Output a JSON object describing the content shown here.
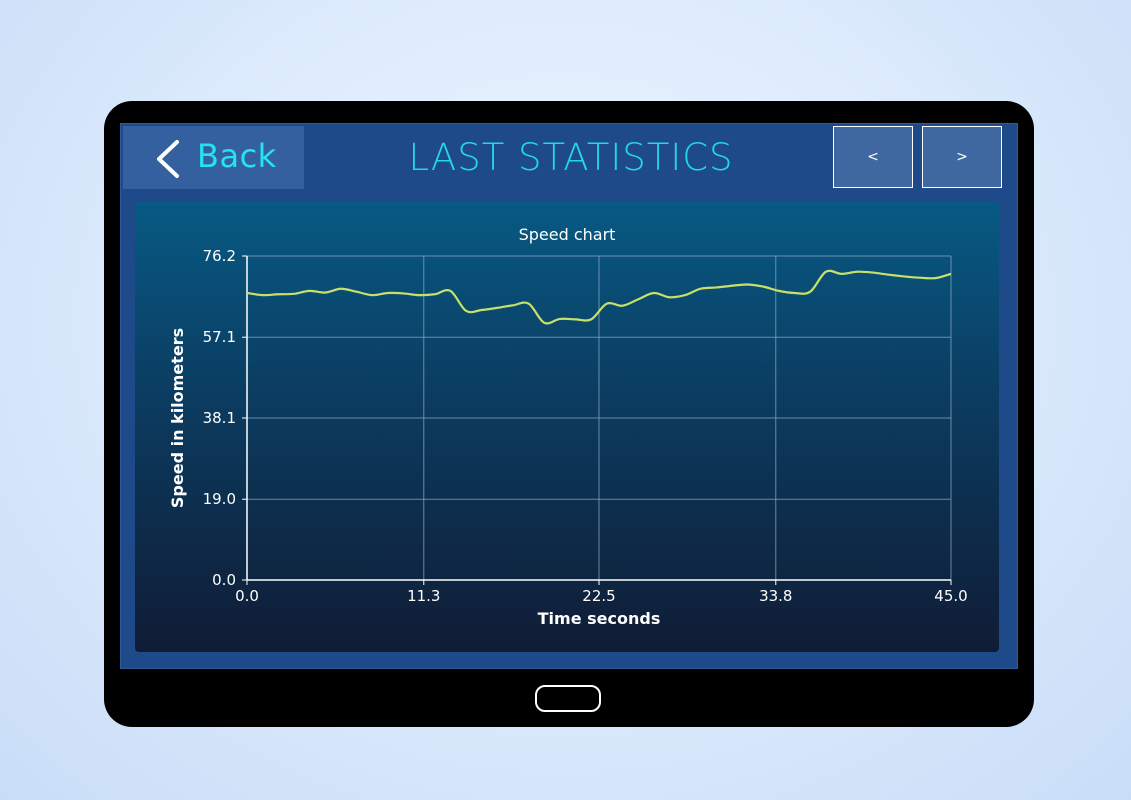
{
  "header": {
    "back_label": "Back",
    "title": "LAST STATISTICS",
    "prev_label": "<",
    "next_label": ">"
  },
  "colors": {
    "accent": "#22d6ee",
    "line": "#c8e06a",
    "grid": "#8aa6bf"
  },
  "icons": {
    "back": "chevron-left-icon"
  },
  "chart_data": {
    "type": "line",
    "title": "Speed chart",
    "xlabel": "Time seconds",
    "ylabel": "Speed in kilometers",
    "xlim": [
      0,
      45
    ],
    "ylim": [
      0,
      76.2
    ],
    "x_ticks": [
      "0.0",
      "11.3",
      "22.5",
      "33.8",
      "45.0"
    ],
    "y_ticks": [
      "0.0",
      "19.0",
      "38.1",
      "57.1",
      "76.2"
    ],
    "grid": true,
    "series": [
      {
        "x": [
          0,
          1,
          2,
          3,
          4,
          5,
          6,
          7,
          8,
          9,
          10,
          11,
          12,
          13,
          14,
          15,
          16,
          17,
          18,
          19,
          20,
          21,
          22,
          23,
          24,
          25,
          26,
          27,
          28,
          29,
          30,
          31,
          32,
          33,
          34,
          35,
          36,
          37,
          38,
          39,
          40,
          41,
          42,
          43,
          44,
          45
        ],
        "values": [
          67.5,
          67,
          67.2,
          67.3,
          68,
          67.6,
          68.5,
          67.8,
          67,
          67.5,
          67.4,
          67,
          67.2,
          68,
          63.3,
          63.5,
          64,
          64.6,
          65,
          60.5,
          61.4,
          61.3,
          61.3,
          65,
          64.5,
          66,
          67.5,
          66.5,
          67,
          68.5,
          68.8,
          69.2,
          69.5,
          69,
          68,
          67.5,
          67.8,
          72.5,
          72,
          72.5,
          72.3,
          71.8,
          71.4,
          71.1,
          71,
          72
        ]
      }
    ]
  }
}
